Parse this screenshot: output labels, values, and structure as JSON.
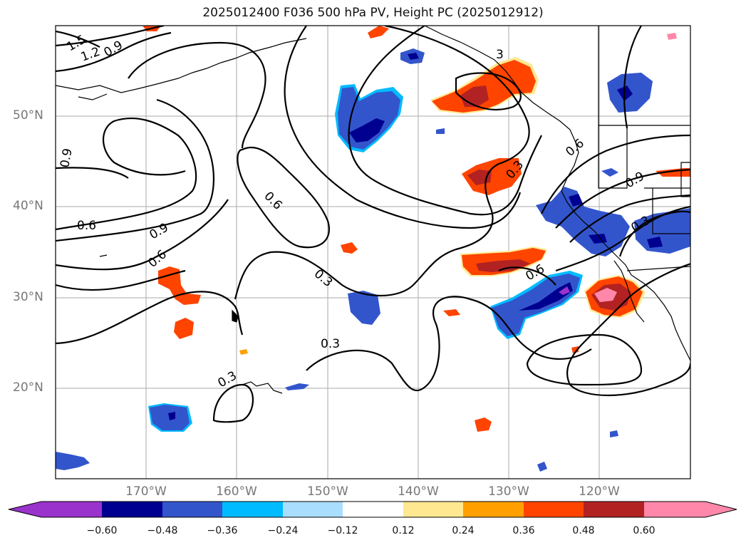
{
  "title": "2025012400 F036 500 hPa PV, Height PC (2025012912)",
  "lon_labels": [
    "170°W",
    "160°W",
    "150°W",
    "140°W",
    "130°W",
    "120°W"
  ],
  "lat_labels": [
    "50°N",
    "40°N",
    "30°N",
    "20°N"
  ],
  "contour_labels": [
    "1.5",
    "1.2",
    "0.9",
    "0.9",
    "0.6",
    "0.9",
    "0.6",
    "0.6",
    "0.3",
    "0.3",
    "0.3",
    "0.3",
    "0.6",
    "0.9",
    "0.3",
    "0.6",
    "0.3",
    "3"
  ],
  "colorbar": {
    "ticks": [
      "−0.60",
      "−0.48",
      "−0.36",
      "−0.24",
      "−0.12",
      "0.12",
      "0.24",
      "0.36",
      "0.48",
      "0.60"
    ],
    "colors": [
      "#9933cc",
      "#000090",
      "#3355cc",
      "#00bbff",
      "#aadeff",
      "#ffffff",
      "#ffe890",
      "#ffa000",
      "#ff4400",
      "#b22222",
      "#ff88aa"
    ]
  },
  "fill_colors": {
    "neg_outer": "#00bbff",
    "neg_mid": "#3355cc",
    "neg_inner": "#000090",
    "neg_core": "#9933cc",
    "pos_outer": "#ffe890",
    "pos_mid": "#ff4400",
    "pos_inner": "#b22222",
    "pos_core": "#ff88aa"
  }
}
